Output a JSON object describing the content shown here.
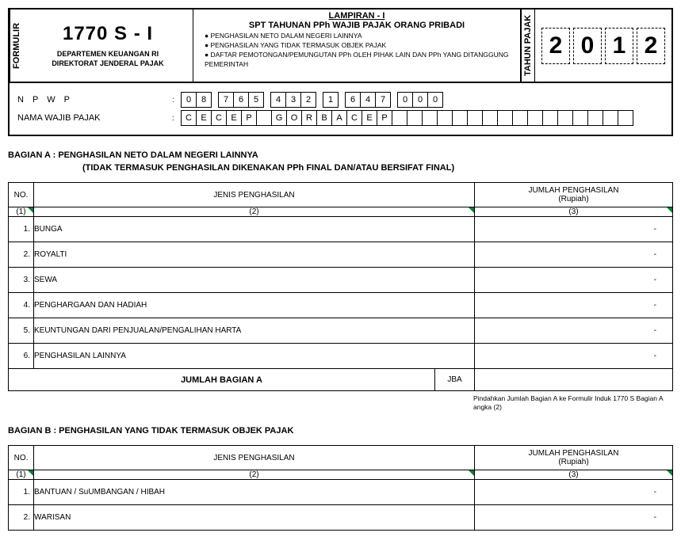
{
  "header": {
    "form_label_vertical": "FORMULIR",
    "tax_year_label_vertical": "TAHUN PAJAK",
    "form_code": "1770 S - I",
    "dept1": "DEPARTEMEN KEUANGAN RI",
    "dept2": "DIREKTORAT JENDERAL PAJAK",
    "lampiran": "LAMPIRAN - I",
    "spt_title": "SPT TAHUNAN PPh WAJIB PAJAK ORANG PRIBADI",
    "bullets": [
      "PENGHASILAN NETO DALAM NEGERI LAINNYA",
      "PENGHASILAN YANG TIDAK TERMASUK OBJEK PAJAK",
      "DAFTAR PEMOTONGAN/PEMUNGUTAN PPh OLEH PIHAK LAIN DAN PPh YANG DITANGGUNG PEMERINTAH"
    ],
    "year": [
      "2",
      "0",
      "1",
      "2"
    ]
  },
  "id": {
    "npwp_label": "N P W P",
    "npwp": [
      "0",
      "8",
      "",
      "7",
      "6",
      "5",
      "",
      "4",
      "3",
      "2",
      "",
      "1",
      "",
      "6",
      "4",
      "7",
      "",
      "0",
      "0",
      "0"
    ],
    "name_label": "NAMA WAJIB PAJAK",
    "name": [
      "C",
      "E",
      "C",
      "E",
      "P",
      "",
      "G",
      "O",
      "R",
      "B",
      "A",
      "C",
      "E",
      "P",
      "",
      "",
      "",
      "",
      "",
      "",
      "",
      "",
      "",
      "",
      "",
      "",
      "",
      "",
      "",
      ""
    ]
  },
  "sectionA": {
    "title": "BAGIAN A   :    PENGHASILAN NETO DALAM NEGERI LAINNYA",
    "subtitle": "(TIDAK TERMASUK PENGHASILAN DIKENAKAN PPh FINAL DAN/ATAU BERSIFAT FINAL)",
    "col_no": "NO.",
    "col_jenis": "JENIS PENGHASILAN",
    "col_jumlah1": "JUMLAH PENGHASILAN",
    "col_jumlah2": "(Rupiah)",
    "h1": "(1)",
    "h2": "(2)",
    "h3": "(3)",
    "rows": [
      {
        "no": "1.",
        "jenis": "BUNGA",
        "amt": "-"
      },
      {
        "no": "2.",
        "jenis": "ROYALTI",
        "amt": "-"
      },
      {
        "no": "3.",
        "jenis": "SEWA",
        "amt": "-"
      },
      {
        "no": "4.",
        "jenis": "PENGHARGAAN DAN HADIAH",
        "amt": "-"
      },
      {
        "no": "5.",
        "jenis": "KEUNTUNGAN DARI PENJUALAN/PENGALIHAN HARTA",
        "amt": "-"
      },
      {
        "no": "6.",
        "jenis": "PENGHASILAN LAINNYA",
        "amt": "-"
      }
    ],
    "total_label": "JUMLAH BAGIAN A",
    "jba": "JBA",
    "total_amt": "",
    "footnote": "Pindahkan Jumlah Bagian A ke Formulir Induk 1770 S Bagian A angka (2)"
  },
  "sectionB": {
    "title": "BAGIAN B   :    PENGHASILAN YANG TIDAK TERMASUK OBJEK PAJAK",
    "col_no": "NO.",
    "col_jenis": "JENIS PENGHASILAN",
    "col_jumlah1": "JUMLAH PENGHASILAN",
    "col_jumlah2": "(Rupiah)",
    "h1": "(1)",
    "h2": "(2)",
    "h3": "(3)",
    "rows": [
      {
        "no": "1.",
        "jenis": "BANTUAN / SuUMBANGAN / HIBAH",
        "amt": "-"
      },
      {
        "no": "2.",
        "jenis": "WARISAN",
        "amt": "-"
      }
    ]
  }
}
